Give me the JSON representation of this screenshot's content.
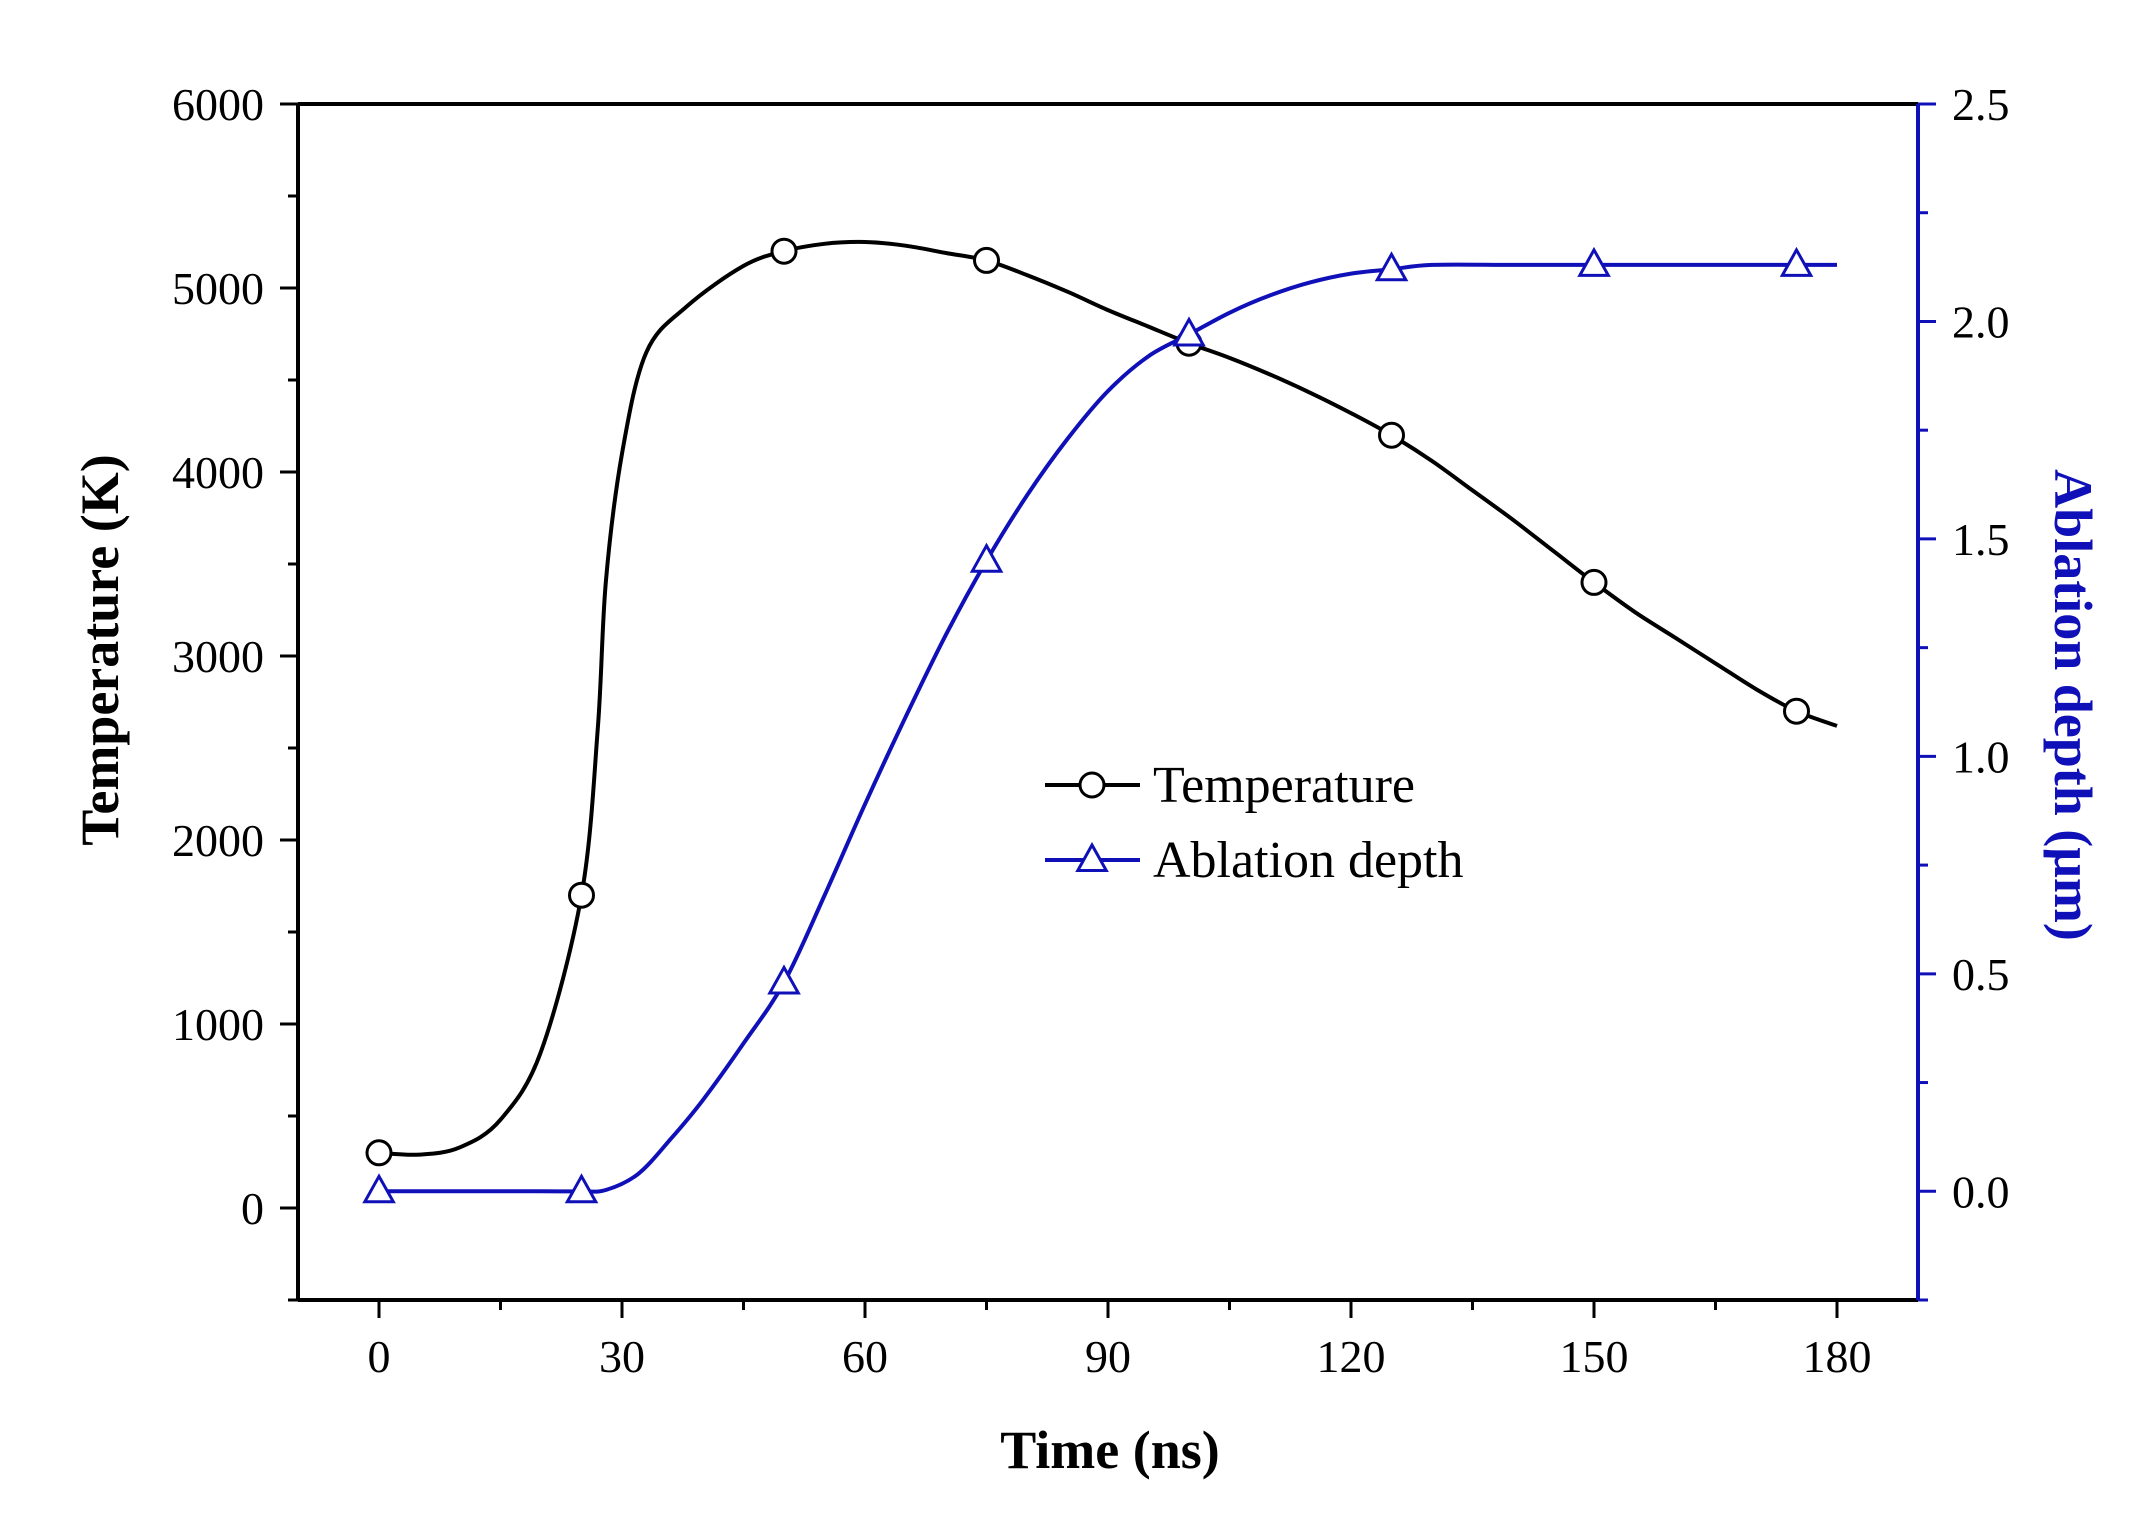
{
  "chart_data": {
    "type": "line",
    "title": "",
    "xlabel": "Time (ns)",
    "ylabel_left": "Temperature (K)",
    "ylabel_right": "Ablation depth (μm)",
    "xlim": [
      -10,
      190
    ],
    "ylim_left": [
      -500,
      6000
    ],
    "ylim_right": [
      -0.25,
      2.5
    ],
    "x_ticks": [
      0,
      30,
      60,
      90,
      120,
      150,
      180
    ],
    "x_tick_labels": [
      "0",
      "30",
      "60",
      "90",
      "120",
      "150",
      "180"
    ],
    "y_left_ticks": [
      0,
      1000,
      2000,
      3000,
      4000,
      5000,
      6000
    ],
    "y_left_tick_labels": [
      "0",
      "1000",
      "2000",
      "3000",
      "4000",
      "5000",
      "6000"
    ],
    "y_right_ticks": [
      0.0,
      0.5,
      1.0,
      1.5,
      2.0,
      2.5
    ],
    "y_right_tick_labels": [
      "0.0",
      "0.5",
      "1.0",
      "1.5",
      "2.0",
      "2.5"
    ],
    "grid": false,
    "legend_position": "center",
    "series": [
      {
        "name": "Temperature",
        "axis": "left",
        "color": "#000000",
        "marker": "circle",
        "points": [
          [
            0,
            300
          ],
          [
            25,
            1700
          ],
          [
            50,
            5200
          ],
          [
            75,
            5150
          ],
          [
            100,
            4700
          ],
          [
            125,
            4200
          ],
          [
            150,
            3400
          ],
          [
            175,
            2700
          ]
        ],
        "curve": [
          [
            0,
            300
          ],
          [
            5,
            290
          ],
          [
            10,
            330
          ],
          [
            15,
            480
          ],
          [
            20,
            850
          ],
          [
            25,
            1700
          ],
          [
            27,
            2600
          ],
          [
            28,
            3400
          ],
          [
            30,
            4100
          ],
          [
            33,
            4650
          ],
          [
            38,
            4900
          ],
          [
            45,
            5120
          ],
          [
            50,
            5200
          ],
          [
            55,
            5240
          ],
          [
            60,
            5250
          ],
          [
            65,
            5230
          ],
          [
            70,
            5190
          ],
          [
            75,
            5150
          ],
          [
            80,
            5070
          ],
          [
            85,
            4980
          ],
          [
            90,
            4880
          ],
          [
            95,
            4790
          ],
          [
            100,
            4700
          ],
          [
            105,
            4620
          ],
          [
            110,
            4530
          ],
          [
            115,
            4430
          ],
          [
            120,
            4320
          ],
          [
            125,
            4200
          ],
          [
            130,
            4060
          ],
          [
            135,
            3900
          ],
          [
            140,
            3740
          ],
          [
            145,
            3570
          ],
          [
            150,
            3400
          ],
          [
            155,
            3240
          ],
          [
            160,
            3100
          ],
          [
            165,
            2960
          ],
          [
            170,
            2820
          ],
          [
            175,
            2700
          ],
          [
            180,
            2620
          ]
        ]
      },
      {
        "name": "Ablation depth",
        "axis": "right",
        "color": "#1010b8",
        "marker": "triangle",
        "points": [
          [
            0,
            0.0
          ],
          [
            25,
            0.0
          ],
          [
            50,
            0.48
          ],
          [
            75,
            1.45
          ],
          [
            100,
            1.97
          ],
          [
            125,
            2.12
          ],
          [
            150,
            2.13
          ],
          [
            175,
            2.13
          ]
        ],
        "curve": [
          [
            0,
            0.0
          ],
          [
            10,
            0.0
          ],
          [
            20,
            0.0
          ],
          [
            25,
            0.0
          ],
          [
            28,
            0.003
          ],
          [
            32,
            0.04
          ],
          [
            36,
            0.12
          ],
          [
            40,
            0.21
          ],
          [
            45,
            0.34
          ],
          [
            50,
            0.48
          ],
          [
            55,
            0.68
          ],
          [
            60,
            0.89
          ],
          [
            65,
            1.09
          ],
          [
            70,
            1.28
          ],
          [
            75,
            1.45
          ],
          [
            80,
            1.6
          ],
          [
            85,
            1.73
          ],
          [
            90,
            1.84
          ],
          [
            95,
            1.92
          ],
          [
            100,
            1.97
          ],
          [
            105,
            2.02
          ],
          [
            110,
            2.06
          ],
          [
            115,
            2.09
          ],
          [
            120,
            2.11
          ],
          [
            125,
            2.12
          ],
          [
            130,
            2.13
          ],
          [
            140,
            2.13
          ],
          [
            150,
            2.13
          ],
          [
            160,
            2.13
          ],
          [
            175,
            2.13
          ],
          [
            180,
            2.13
          ]
        ]
      }
    ]
  },
  "legend": {
    "items": [
      "Temperature",
      "Ablation depth"
    ]
  }
}
